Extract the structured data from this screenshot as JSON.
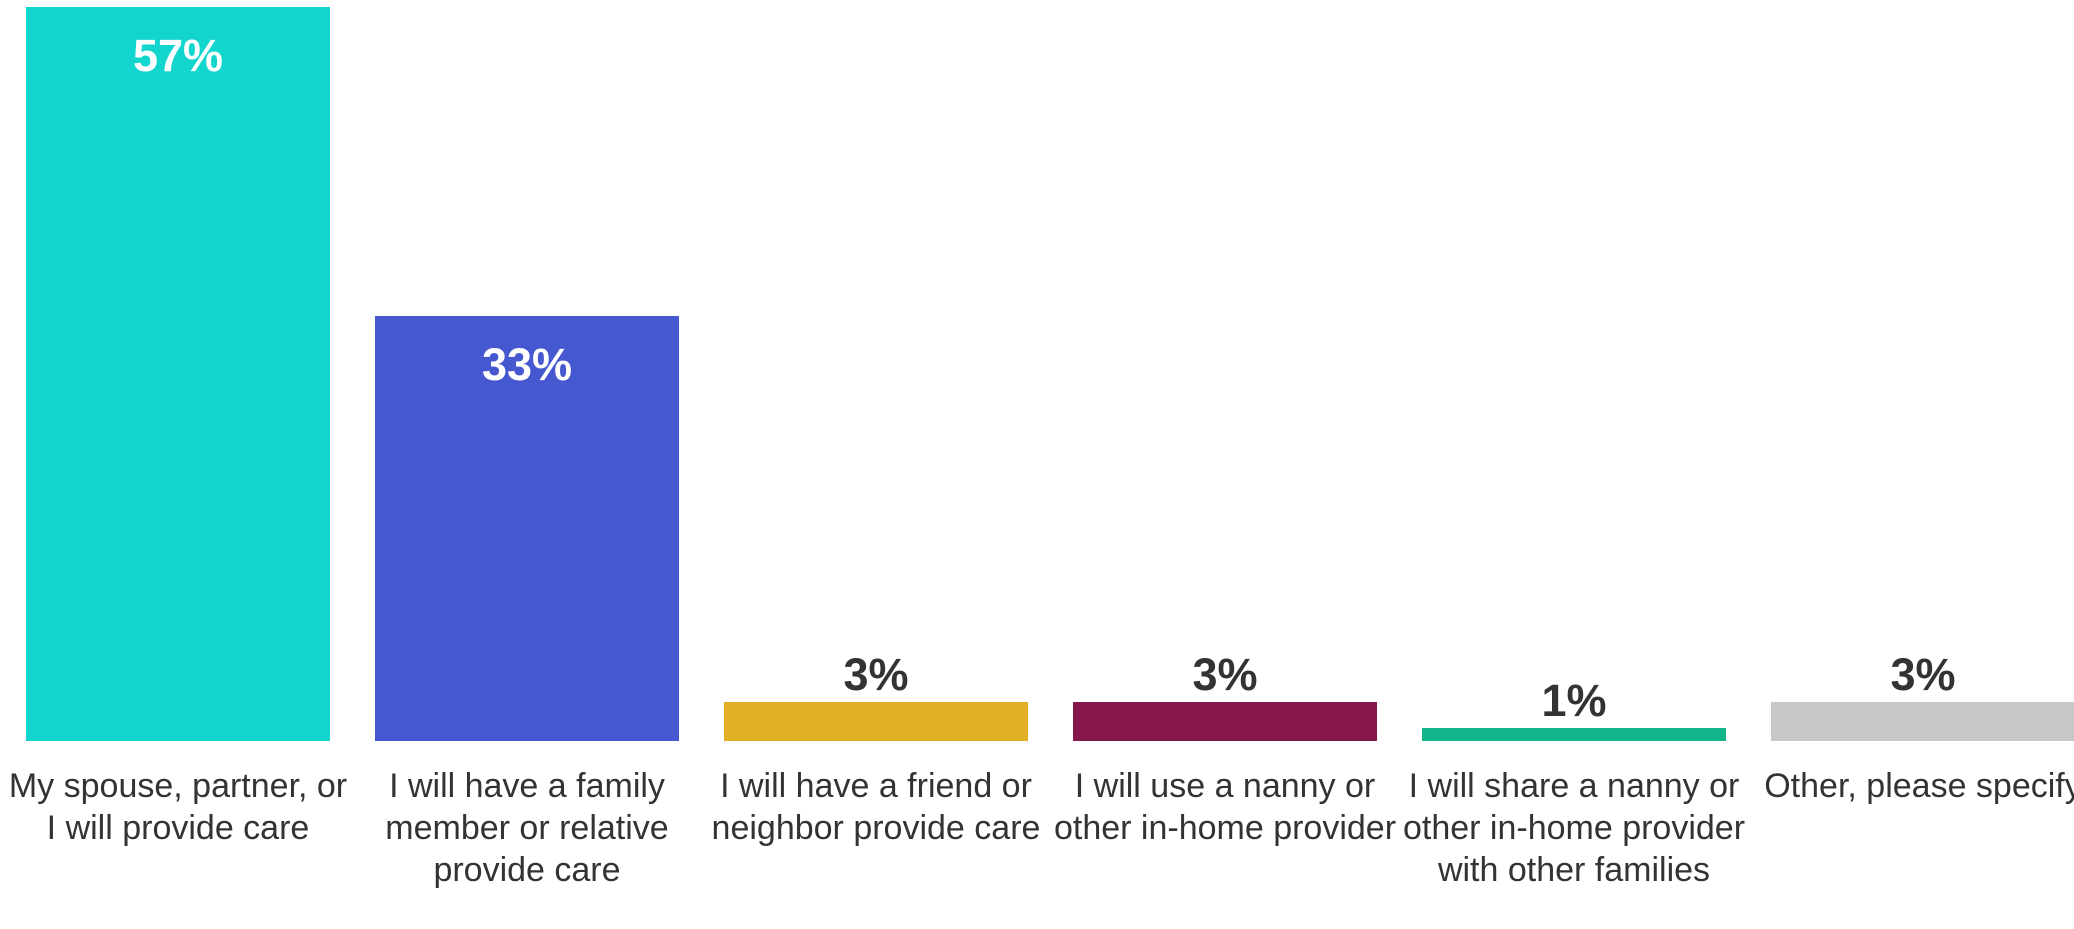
{
  "chart_data": {
    "type": "bar",
    "categories": [
      "My spouse, partner, or I will provide care",
      "I will have a family member or relative provide care",
      "I will have a friend or neighbor provide care",
      "I will use a nanny or other in-home provider",
      "I will share a nanny or other in-home provider with other families",
      "Other, please specify"
    ],
    "values": [
      57,
      33,
      3,
      3,
      1,
      3
    ],
    "value_labels": [
      "57%",
      "33%",
      "3%",
      "3%",
      "1%",
      "3%"
    ],
    "colors": [
      "#12d6cd",
      "#4658cf",
      "#e2b024",
      "#86174d",
      "#12b48a",
      "#c8c8c8"
    ]
  }
}
